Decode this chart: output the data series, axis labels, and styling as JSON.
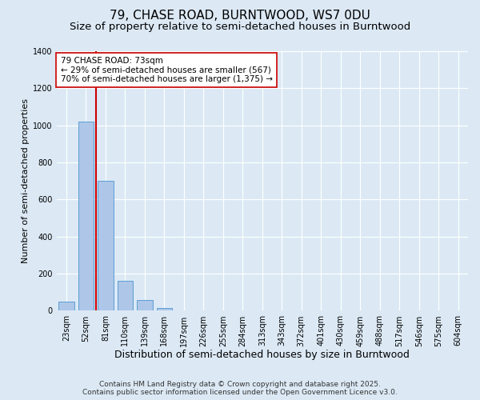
{
  "title": "79, CHASE ROAD, BURNTWOOD, WS7 0DU",
  "subtitle": "Size of property relative to semi-detached houses in Burntwood",
  "xlabel": "Distribution of semi-detached houses by size in Burntwood",
  "ylabel": "Number of semi-detached properties",
  "categories": [
    "23sqm",
    "52sqm",
    "81sqm",
    "110sqm",
    "139sqm",
    "168sqm",
    "197sqm",
    "226sqm",
    "255sqm",
    "284sqm",
    "313sqm",
    "343sqm",
    "372sqm",
    "401sqm",
    "430sqm",
    "459sqm",
    "488sqm",
    "517sqm",
    "546sqm",
    "575sqm",
    "604sqm"
  ],
  "values": [
    50,
    1020,
    700,
    160,
    60,
    15,
    0,
    0,
    0,
    0,
    0,
    0,
    0,
    0,
    0,
    0,
    0,
    0,
    0,
    0,
    0
  ],
  "bar_color": "#aec6e8",
  "bar_edge_color": "#5a9fd4",
  "vline_color": "#cc0000",
  "vline_x": 1.5,
  "annotation_text": "79 CHASE ROAD: 73sqm\n← 29% of semi-detached houses are smaller (567)\n70% of semi-detached houses are larger (1,375) →",
  "annotation_box_facecolor": "#ffffff",
  "annotation_border_color": "#cc0000",
  "ylim": [
    0,
    1400
  ],
  "yticks": [
    0,
    200,
    400,
    600,
    800,
    1000,
    1200,
    1400
  ],
  "background_color": "#dce9f5",
  "plot_background_color": "#dce9f5",
  "grid_color": "#ffffff",
  "footer_text": "Contains HM Land Registry data © Crown copyright and database right 2025.\nContains public sector information licensed under the Open Government Licence v3.0.",
  "title_fontsize": 11,
  "subtitle_fontsize": 9.5,
  "xlabel_fontsize": 9,
  "ylabel_fontsize": 8,
  "tick_fontsize": 7,
  "annotation_fontsize": 7.5,
  "footer_fontsize": 6.5
}
